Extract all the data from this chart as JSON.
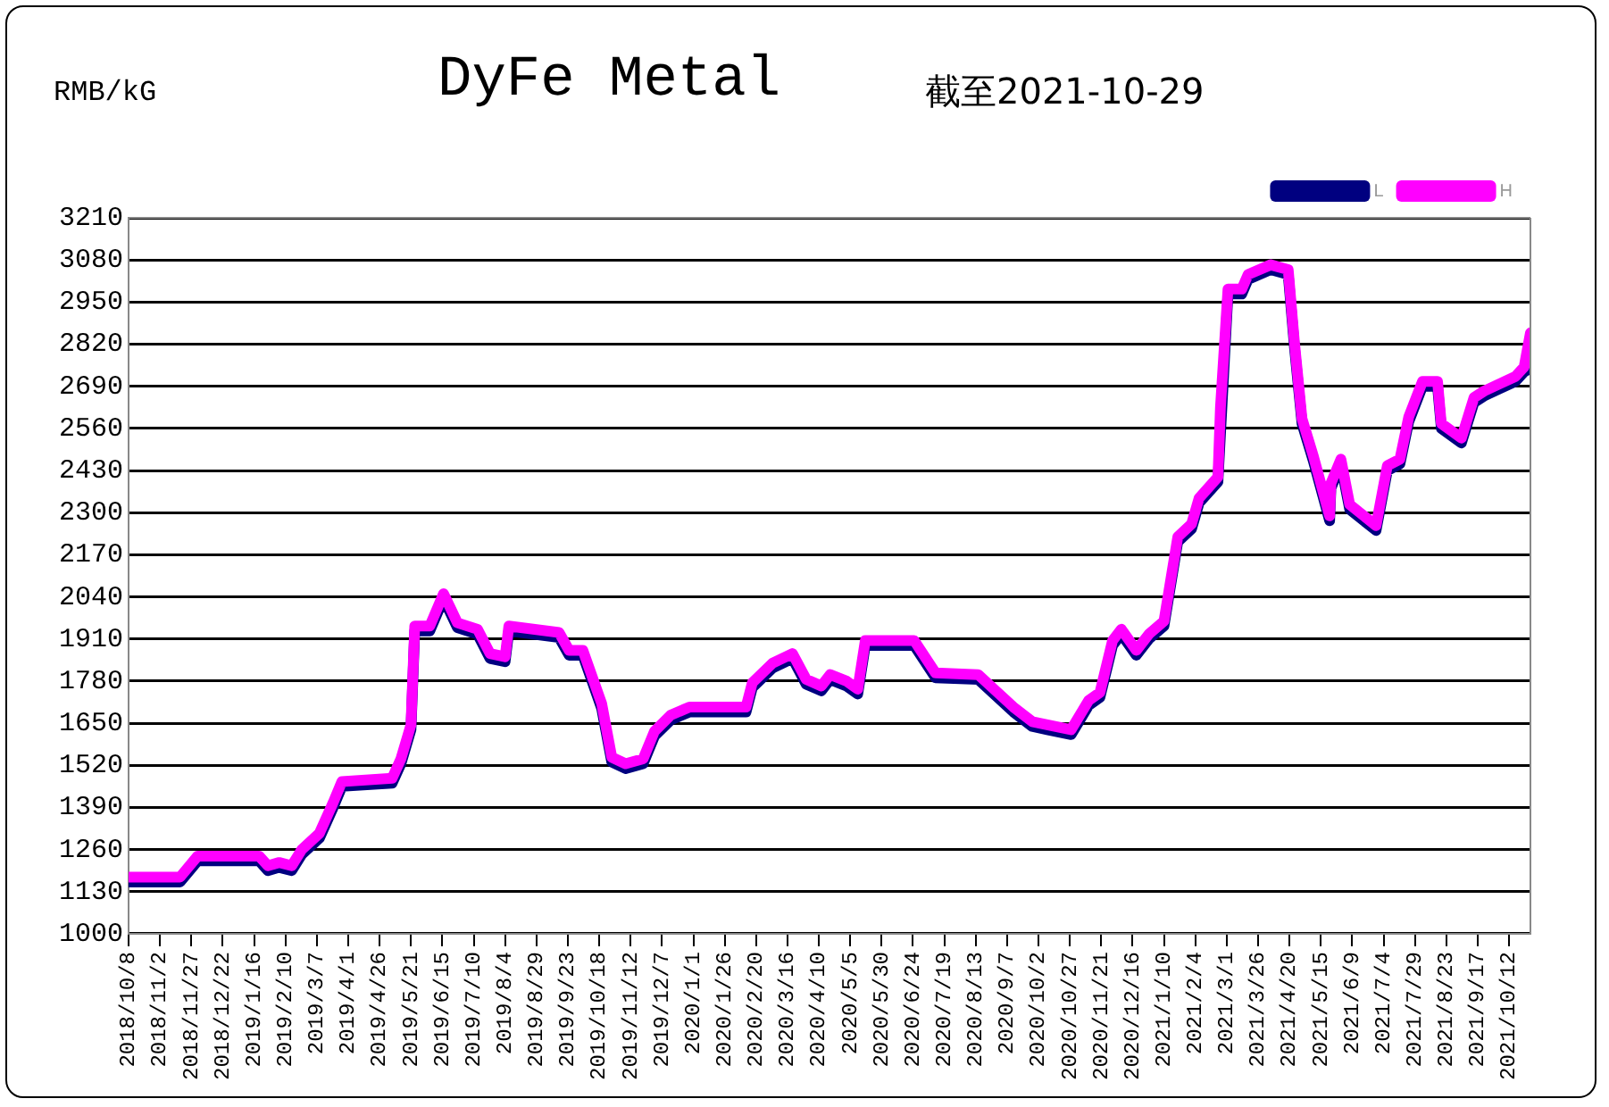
{
  "chart_data": {
    "type": "line",
    "title": "DyFe Metal",
    "subtitle": "截至2021-10-29",
    "ylabel": "RMB/kG",
    "xlim": [
      "2018-10-08",
      "2021-10-29"
    ],
    "xticks": [
      {
        "value": "2018-10-08",
        "label": "2018/10/8"
      },
      {
        "value": "2018-11-02",
        "label": "2018/11/2"
      },
      {
        "value": "2018-11-27",
        "label": "2018/11/27"
      },
      {
        "value": "2018-12-22",
        "label": "2018/12/22"
      },
      {
        "value": "2019-01-16",
        "label": "2019/1/16"
      },
      {
        "value": "2019-02-10",
        "label": "2019/2/10"
      },
      {
        "value": "2019-03-07",
        "label": "2019/3/7"
      },
      {
        "value": "2019-04-01",
        "label": "2019/4/1"
      },
      {
        "value": "2019-04-26",
        "label": "2019/4/26"
      },
      {
        "value": "2019-05-21",
        "label": "2019/5/21"
      },
      {
        "value": "2019-06-15",
        "label": "2019/6/15"
      },
      {
        "value": "2019-07-10",
        "label": "2019/7/10"
      },
      {
        "value": "2019-08-04",
        "label": "2019/8/4"
      },
      {
        "value": "2019-08-29",
        "label": "2019/8/29"
      },
      {
        "value": "2019-09-23",
        "label": "2019/9/23"
      },
      {
        "value": "2019-10-18",
        "label": "2019/10/18"
      },
      {
        "value": "2019-11-12",
        "label": "2019/11/12"
      },
      {
        "value": "2019-12-07",
        "label": "2019/12/7"
      },
      {
        "value": "2020-01-01",
        "label": "2020/1/1"
      },
      {
        "value": "2020-01-26",
        "label": "2020/1/26"
      },
      {
        "value": "2020-02-20",
        "label": "2020/2/20"
      },
      {
        "value": "2020-03-16",
        "label": "2020/3/16"
      },
      {
        "value": "2020-04-10",
        "label": "2020/4/10"
      },
      {
        "value": "2020-05-05",
        "label": "2020/5/5"
      },
      {
        "value": "2020-05-30",
        "label": "2020/5/30"
      },
      {
        "value": "2020-06-24",
        "label": "2020/6/24"
      },
      {
        "value": "2020-07-19",
        "label": "2020/7/19"
      },
      {
        "value": "2020-08-13",
        "label": "2020/8/13"
      },
      {
        "value": "2020-09-07",
        "label": "2020/9/7"
      },
      {
        "value": "2020-10-02",
        "label": "2020/10/2"
      },
      {
        "value": "2020-10-27",
        "label": "2020/10/27"
      },
      {
        "value": "2020-11-21",
        "label": "2020/11/21"
      },
      {
        "value": "2020-12-16",
        "label": "2020/12/16"
      },
      {
        "value": "2021-01-10",
        "label": "2021/1/10"
      },
      {
        "value": "2021-02-04",
        "label": "2021/2/4"
      },
      {
        "value": "2021-03-01",
        "label": "2021/3/1"
      },
      {
        "value": "2021-03-26",
        "label": "2021/3/26"
      },
      {
        "value": "2021-04-20",
        "label": "2021/4/20"
      },
      {
        "value": "2021-05-15",
        "label": "2021/5/15"
      },
      {
        "value": "2021-06-09",
        "label": "2021/6/9"
      },
      {
        "value": "2021-07-04",
        "label": "2021/7/4"
      },
      {
        "value": "2021-07-29",
        "label": "2021/7/29"
      },
      {
        "value": "2021-08-23",
        "label": "2021/8/23"
      },
      {
        "value": "2021-09-17",
        "label": "2021/9/17"
      },
      {
        "value": "2021-10-12",
        "label": "2021/10/12"
      }
    ],
    "ylim": [
      1000,
      3210
    ],
    "yticks": [
      1000,
      1130,
      1260,
      1390,
      1520,
      1650,
      1780,
      1910,
      2040,
      2170,
      2300,
      2430,
      2560,
      2690,
      2820,
      2950,
      3080,
      3210
    ],
    "grid": "y",
    "legend": "top right",
    "marker": "none",
    "line_style": "solid",
    "x": [
      "2018-10-08",
      "2018-11-18",
      "2018-12-02",
      "2019-01-20",
      "2019-01-27",
      "2019-02-05",
      "2019-02-15",
      "2019-02-23",
      "2019-03-09",
      "2019-03-20",
      "2019-03-27",
      "2019-05-06",
      "2019-05-13",
      "2019-05-21",
      "2019-05-24",
      "2019-06-05",
      "2019-06-16",
      "2019-06-27",
      "2019-07-13",
      "2019-07-23",
      "2019-08-04",
      "2019-08-07",
      "2019-09-16",
      "2019-09-24",
      "2019-10-05",
      "2019-10-20",
      "2019-10-28",
      "2019-11-08",
      "2019-11-22",
      "2019-12-01",
      "2019-12-14",
      "2019-12-29",
      "2020-02-12",
      "2020-02-17",
      "2020-03-04",
      "2020-03-20",
      "2020-03-31",
      "2020-04-12",
      "2020-04-19",
      "2020-05-02",
      "2020-05-11",
      "2020-05-17",
      "2020-06-25",
      "2020-07-12",
      "2020-08-15",
      "2020-09-12",
      "2020-09-27",
      "2020-10-09",
      "2020-10-28",
      "2020-11-11",
      "2020-11-20",
      "2020-11-30",
      "2020-12-07",
      "2020-12-19",
      "2020-12-29",
      "2021-01-10",
      "2021-01-21",
      "2021-02-01",
      "2021-02-07",
      "2021-02-22",
      "2021-02-24",
      "2021-03-02",
      "2021-03-13",
      "2021-03-18",
      "2021-04-05",
      "2021-04-19",
      "2021-04-24",
      "2021-04-30",
      "2021-05-09",
      "2021-05-22",
      "2021-05-23",
      "2021-05-31",
      "2021-06-07",
      "2021-06-28",
      "2021-07-07",
      "2021-07-17",
      "2021-07-24",
      "2021-08-04",
      "2021-08-16",
      "2021-08-19",
      "2021-09-04",
      "2021-09-14",
      "2021-09-22",
      "2021-10-03",
      "2021-10-17",
      "2021-10-24",
      "2021-10-29"
    ],
    "series": [
      {
        "name": "L",
        "color": "#000080",
        "values": [
          1160,
          1160,
          1225,
          1225,
          1195,
          1205,
          1195,
          1245,
          1295,
          1390,
          1455,
          1465,
          1525,
          1630,
          1935,
          1935,
          2035,
          1945,
          1925,
          1850,
          1840,
          1935,
          1915,
          1860,
          1860,
          1695,
          1530,
          1510,
          1525,
          1610,
          1660,
          1685,
          1685,
          1760,
          1820,
          1850,
          1770,
          1750,
          1785,
          1765,
          1740,
          1890,
          1890,
          1790,
          1785,
          1685,
          1640,
          1630,
          1615,
          1705,
          1730,
          1890,
          1925,
          1860,
          1910,
          1950,
          2210,
          2250,
          2330,
          2395,
          null,
          2975,
          2975,
          3020,
          3050,
          3035,
          2810,
          2575,
          2460,
          2275,
          2375,
          2450,
          2310,
          2245,
          2430,
          2450,
          2580,
          2690,
          2690,
          2560,
          2515,
          2640,
          2660,
          2680,
          2705,
          2735,
          2745
        ]
      },
      {
        "name": "H",
        "color": "#ff00ff",
        "values": [
          1175,
          1175,
          1240,
          1240,
          1210,
          1220,
          1210,
          1260,
          1310,
          1405,
          1470,
          1480,
          1540,
          1645,
          1950,
          1950,
          2050,
          1960,
          1940,
          1865,
          1855,
          1950,
          1930,
          1875,
          1875,
          1710,
          1545,
          1525,
          1540,
          1625,
          1675,
          1700,
          1700,
          1775,
          1835,
          1865,
          1785,
          1765,
          1800,
          1780,
          1755,
          1905,
          1905,
          1805,
          1800,
          1700,
          1655,
          1645,
          1630,
          1720,
          1745,
          1905,
          1940,
          1875,
          1925,
          1965,
          2225,
          2265,
          2345,
          2410,
          2625,
          2990,
          2990,
          3035,
          3065,
          3050,
          2825,
          2590,
          2475,
          2290,
          2390,
          2465,
          2325,
          2260,
          2445,
          2465,
          2595,
          2705,
          2705,
          2575,
          2530,
          2655,
          2675,
          2695,
          2720,
          2750,
          2855
        ]
      }
    ]
  }
}
